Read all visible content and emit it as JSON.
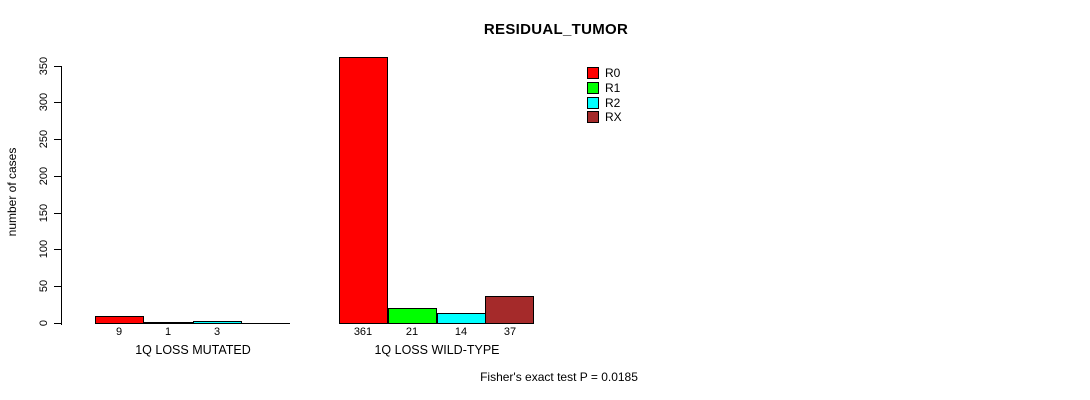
{
  "chart_data": {
    "type": "bar",
    "title": "RESIDUAL_TUMOR",
    "ylabel": "number of cases",
    "xlabel": "",
    "ylim": [
      0,
      350
    ],
    "yticks": [
      0,
      50,
      100,
      150,
      200,
      250,
      300,
      350
    ],
    "grid": false,
    "legend_position": "top-right",
    "categories": [
      "1Q LOSS MUTATED",
      "1Q LOSS WILD-TYPE"
    ],
    "series": [
      {
        "name": "R0",
        "color": "#FF0000",
        "values": [
          9,
          361
        ]
      },
      {
        "name": "R1",
        "color": "#00FF00",
        "values": [
          1,
          21
        ]
      },
      {
        "name": "R2",
        "color": "#00FFFF",
        "values": [
          3,
          14
        ]
      },
      {
        "name": "RX",
        "color": "#A52A2A",
        "values": [
          0,
          37
        ]
      }
    ],
    "bar_value_labels": [
      [
        "9",
        "1",
        "3",
        ""
      ],
      [
        "361",
        "21",
        "14",
        "37"
      ]
    ],
    "annotation": "Fisher's exact test P = 0.0185",
    "axis_color": "#000000",
    "background_color": "#FFFFFF"
  }
}
